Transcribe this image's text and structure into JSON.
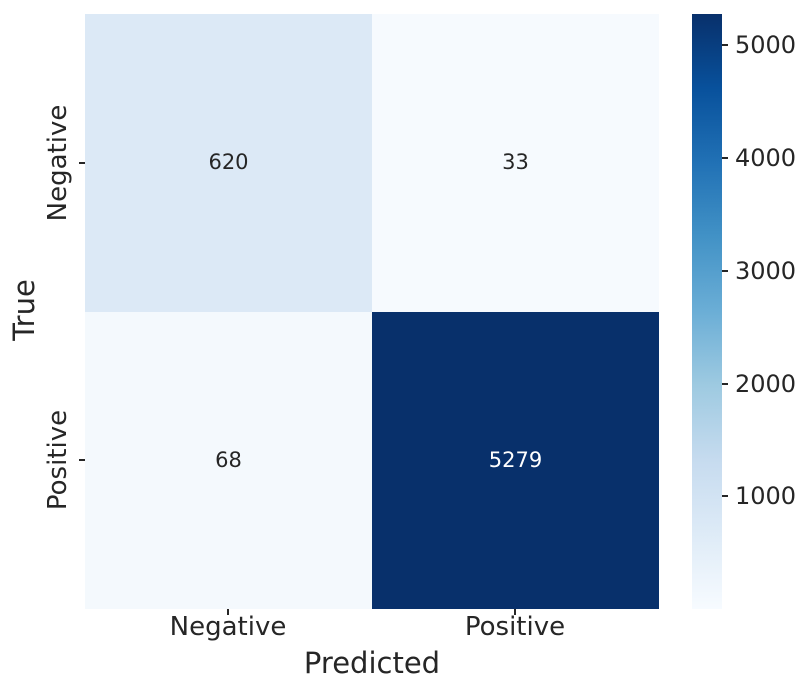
{
  "chart_data": {
    "type": "heatmap",
    "title": "",
    "xlabel": "Predicted",
    "ylabel": "True",
    "x_categories": [
      "Negative",
      "Positive"
    ],
    "y_categories": [
      "Negative",
      "Positive"
    ],
    "matrix": [
      [
        620,
        33
      ],
      [
        68,
        5279
      ]
    ],
    "vmin": 0,
    "vmax": 5279,
    "colormap": "Blues",
    "cell_colors": [
      [
        "#dce9f6",
        "#f6fafe"
      ],
      [
        "#f4f9fd",
        "#08306b"
      ]
    ],
    "cell_text_colors": [
      [
        "#262626",
        "#262626"
      ],
      [
        "#262626",
        "#ffffff"
      ]
    ],
    "grid": false,
    "legend": false,
    "colorbar": {
      "position": "right",
      "ticks": [
        1000,
        2000,
        3000,
        4000,
        5000
      ],
      "gradient_stops": [
        "#f7fbff",
        "#deebf7",
        "#c6dbef",
        "#9ecae1",
        "#6baed6",
        "#4292c6",
        "#2171b5",
        "#08519c",
        "#08306b"
      ]
    }
  },
  "text_color": "#262626"
}
